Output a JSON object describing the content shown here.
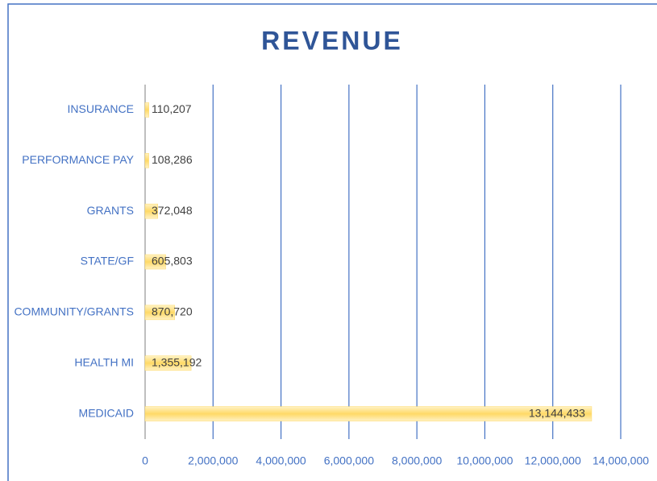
{
  "chart_data": {
    "type": "hbar",
    "title": "REVENUE",
    "categories": [
      "INSURANCE",
      "PERFORMANCE PAY",
      "GRANTS",
      "STATE/GF",
      "COMMUNITY/GRANTS",
      "HEALTH MI",
      "MEDICAID"
    ],
    "values": [
      110207,
      108286,
      372048,
      605803,
      870720,
      1355192,
      13144433
    ],
    "value_labels": [
      "110,207",
      "108,286",
      "372,048",
      "605,803",
      "870,720",
      "1,355,192",
      "13,144,433"
    ],
    "color": "#ffd966",
    "xlim": [
      0,
      14000000
    ],
    "xticks": [
      0,
      {
        "value": 2000000,
        "label": "2,000,000"
      },
      {
        "value": 4000000,
        "label": "4,000,000"
      },
      {
        "value": 6000000,
        "label": "6,000,000"
      },
      {
        "value": 8000000,
        "label": "8,000,000"
      },
      {
        "value": 10000000,
        "label": "10,000,000"
      },
      {
        "value": 12000000,
        "label": "12,000,000"
      },
      {
        "value": 14000000,
        "label": "14,000,000"
      }
    ],
    "grid": true
  }
}
